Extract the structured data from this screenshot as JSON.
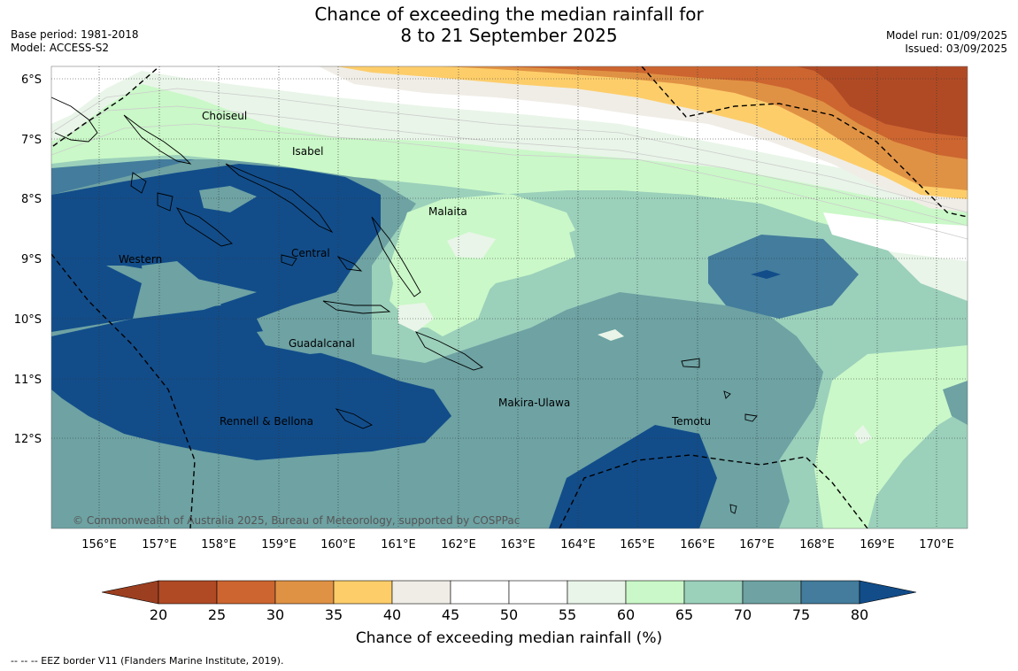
{
  "header": {
    "title_line1": "Chance of exceeding the median rainfall for",
    "title_line2": "8 to 21 September 2025",
    "base_period": "Base period: 1981-2018",
    "model": "Model: ACCESS-S2",
    "model_run": "Model run: 01/09/2025",
    "issued": "Issued: 03/09/2025"
  },
  "map": {
    "lat_labels": [
      "6°S",
      "7°S",
      "8°S",
      "9°S",
      "10°S",
      "11°S",
      "12°S"
    ],
    "lon_labels": [
      "156°E",
      "157°E",
      "158°E",
      "159°E",
      "160°E",
      "161°E",
      "162°E",
      "163°E",
      "164°E",
      "165°E",
      "166°E",
      "167°E",
      "168°E",
      "169°E",
      "170°E"
    ],
    "places": [
      "Choiseul",
      "Isabel",
      "Malaita",
      "Western",
      "Central",
      "Guadalcanal",
      "Makira-Ulawa",
      "Rennell & Bellona",
      "Temotu"
    ],
    "copyright": "© Commonwealth of Australia 2025, Bureau of Meteorology, supported by COSPPac"
  },
  "colorbar": {
    "ticks": [
      "20",
      "25",
      "30",
      "35",
      "40",
      "45",
      "50",
      "55",
      "60",
      "65",
      "70",
      "75",
      "80"
    ],
    "colors": [
      "#b04a25",
      "#cc6530",
      "#e09244",
      "#fdcd6a",
      "#f0ede6",
      "#ffffff",
      "#ffffff",
      "#e9f5e8",
      "#caf8c8",
      "#9bd0bb",
      "#6ea2a3",
      "#437c9c",
      "#124d8a"
    ],
    "under_color": "#9c3f20",
    "over_color": "#124d8a",
    "title": "Chance of exceeding median rainfall (%)"
  },
  "footer": {
    "legend": "--  --  -- EEZ border V11 (Flanders Marine Institute, 2019)."
  }
}
